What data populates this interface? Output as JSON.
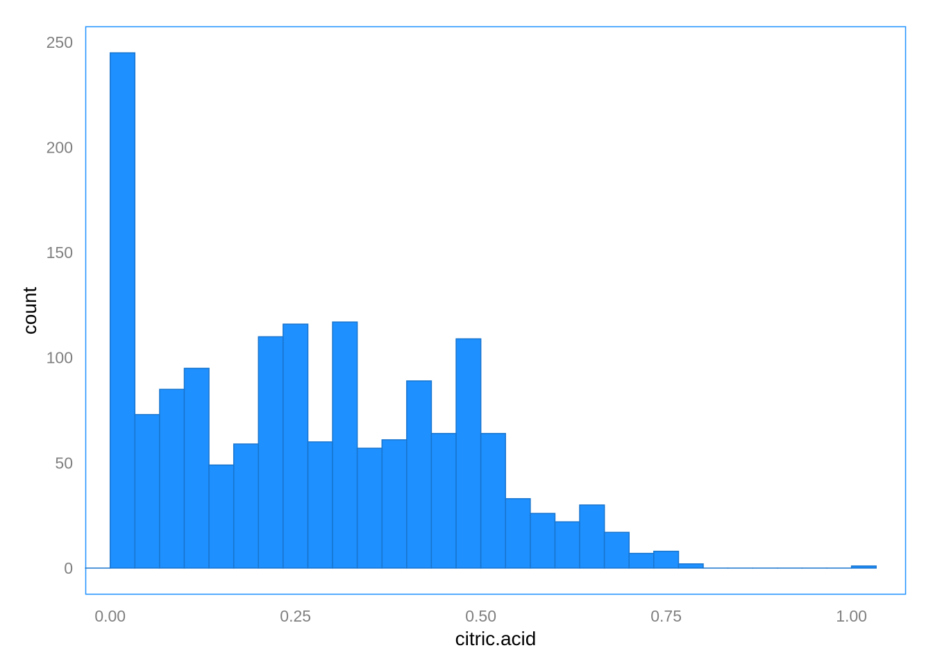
{
  "chart_data": {
    "type": "bar",
    "subtype": "histogram",
    "title": "",
    "xlabel": "citric.acid",
    "ylabel": "count",
    "xlim": [
      -0.0325,
      1.0725
    ],
    "ylim": [
      -12.25,
      257.25
    ],
    "x_ticks": [
      0,
      0.25,
      0.5,
      0.75,
      1
    ],
    "x_tick_labels": [
      "0.00",
      "0.25",
      "0.50",
      "0.75",
      "1.00"
    ],
    "y_ticks": [
      0,
      50,
      100,
      150,
      200,
      250
    ],
    "y_tick_labels": [
      "0",
      "50",
      "100",
      "150",
      "200",
      "250"
    ],
    "grid": false,
    "legend": "none",
    "colors": {
      "fill": "#1e90ff",
      "bar_outline": "#1874cd",
      "panel_border": "#1e90ff"
    },
    "bins": [
      {
        "x0": -0.0333,
        "x1": 0.0,
        "count": 0
      },
      {
        "x0": 0.0,
        "x1": 0.0333,
        "count": 245
      },
      {
        "x0": 0.0333,
        "x1": 0.0667,
        "count": 73
      },
      {
        "x0": 0.0667,
        "x1": 0.1,
        "count": 85
      },
      {
        "x0": 0.1,
        "x1": 0.1333,
        "count": 95
      },
      {
        "x0": 0.1333,
        "x1": 0.1667,
        "count": 49
      },
      {
        "x0": 0.1667,
        "x1": 0.2,
        "count": 59
      },
      {
        "x0": 0.2,
        "x1": 0.2333,
        "count": 110
      },
      {
        "x0": 0.2333,
        "x1": 0.2667,
        "count": 116
      },
      {
        "x0": 0.2667,
        "x1": 0.3,
        "count": 60
      },
      {
        "x0": 0.3,
        "x1": 0.3333,
        "count": 117
      },
      {
        "x0": 0.3333,
        "x1": 0.3667,
        "count": 57
      },
      {
        "x0": 0.3667,
        "x1": 0.4,
        "count": 61
      },
      {
        "x0": 0.4,
        "x1": 0.4333,
        "count": 89
      },
      {
        "x0": 0.4333,
        "x1": 0.4667,
        "count": 64
      },
      {
        "x0": 0.4667,
        "x1": 0.5,
        "count": 109
      },
      {
        "x0": 0.5,
        "x1": 0.5333,
        "count": 64
      },
      {
        "x0": 0.5333,
        "x1": 0.5667,
        "count": 33
      },
      {
        "x0": 0.5667,
        "x1": 0.6,
        "count": 26
      },
      {
        "x0": 0.6,
        "x1": 0.6333,
        "count": 22
      },
      {
        "x0": 0.6333,
        "x1": 0.6667,
        "count": 30
      },
      {
        "x0": 0.6667,
        "x1": 0.7,
        "count": 17
      },
      {
        "x0": 0.7,
        "x1": 0.7333,
        "count": 7
      },
      {
        "x0": 0.7333,
        "x1": 0.7667,
        "count": 8
      },
      {
        "x0": 0.7667,
        "x1": 0.8,
        "count": 2
      },
      {
        "x0": 0.8,
        "x1": 0.8333,
        "count": 0
      },
      {
        "x0": 0.8333,
        "x1": 0.8667,
        "count": 0
      },
      {
        "x0": 0.8667,
        "x1": 0.9,
        "count": 0
      },
      {
        "x0": 0.9,
        "x1": 0.9333,
        "count": 0
      },
      {
        "x0": 0.9333,
        "x1": 0.9667,
        "count": 0
      },
      {
        "x0": 0.9667,
        "x1": 1.0,
        "count": 0
      },
      {
        "x0": 1.0,
        "x1": 1.0333,
        "count": 1
      }
    ]
  }
}
